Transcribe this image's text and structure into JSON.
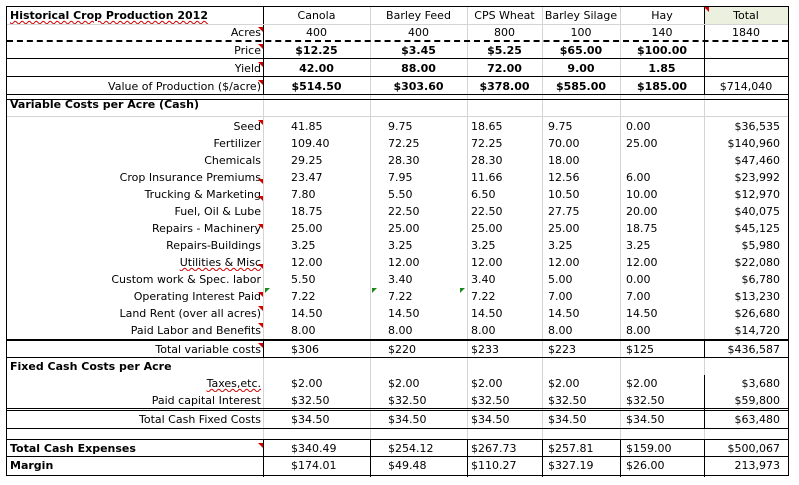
{
  "title": "Historical Crop Production 2012",
  "columns": [
    "Canola",
    "Barley Feed",
    "CPS Wheat",
    "Barley Silage",
    "Hay",
    "Total"
  ],
  "acres": {
    "label": "Acres",
    "values": [
      "400",
      "400",
      "800",
      "100",
      "140",
      "1840"
    ]
  },
  "price": {
    "label": "Price",
    "values": [
      "$12.25",
      "$3.45",
      "$5.25",
      "$65.00",
      "$100.00",
      ""
    ]
  },
  "yield": {
    "label": "Yield",
    "values": [
      "42.00",
      "88.00",
      "72.00",
      "9.00",
      "1.85",
      ""
    ]
  },
  "value": {
    "label": "Value of Production ($/acre)",
    "values": [
      "$514.50",
      "$303.60",
      "$378.00",
      "$585.00",
      "$185.00",
      "$714,040"
    ]
  },
  "variable_header": "Variable Costs per Acre (Cash)",
  "variable_rows": [
    {
      "label": "Seed",
      "values": [
        "41.85",
        "9.75",
        "18.65",
        "9.75",
        "0.00",
        "$36,535"
      ]
    },
    {
      "label": "Fertilizer",
      "values": [
        "109.40",
        "72.25",
        "72.25",
        "70.00",
        "25.00",
        "$140,960"
      ]
    },
    {
      "label": "Chemicals",
      "values": [
        "29.25",
        "28.30",
        "28.30",
        "18.00",
        "",
        "$47,460"
      ]
    },
    {
      "label": "Crop Insurance Premiums",
      "values": [
        "23.47",
        "7.95",
        "11.66",
        "12.56",
        "6.00",
        "$23,992"
      ]
    },
    {
      "label": "Trucking & Marketing",
      "values": [
        "7.80",
        "5.50",
        "6.50",
        "10.50",
        "10.00",
        "$12,970"
      ]
    },
    {
      "label": "Fuel, Oil & Lube",
      "values": [
        "18.75",
        "22.50",
        "22.50",
        "27.75",
        "20.00",
        "$40,075"
      ]
    },
    {
      "label": "Repairs - Machinery",
      "values": [
        "25.00",
        "25.00",
        "25.00",
        "25.00",
        "18.75",
        "$45,125"
      ]
    },
    {
      "label": "Repairs-Buildings",
      "values": [
        "3.25",
        "3.25",
        "3.25",
        "3.25",
        "3.25",
        "$5,980"
      ]
    },
    {
      "label": "Utilities & Misc",
      "values": [
        "12.00",
        "12.00",
        "12.00",
        "12.00",
        "12.00",
        "$22,080"
      ]
    },
    {
      "label": "Custom work & Spec. labor",
      "values": [
        "5.50",
        "3.40",
        "3.40",
        "5.00",
        "0.00",
        "$6,780"
      ]
    },
    {
      "label": "Operating Interest Paid",
      "values": [
        "7.22",
        "7.22",
        "7.22",
        "7.00",
        "7.00",
        "$13,230"
      ]
    },
    {
      "label": "Land Rent (over all acres)",
      "values": [
        "14.50",
        "14.50",
        "14.50",
        "14.50",
        "14.50",
        "$26,680"
      ]
    },
    {
      "label": "Paid Labor and Benefits",
      "values": [
        "8.00",
        "8.00",
        "8.00",
        "8.00",
        "8.00",
        "$14,720"
      ]
    }
  ],
  "total_variable": {
    "label": "Total variable costs",
    "values": [
      "$306",
      "$220",
      "$233",
      "$223",
      "$125",
      "$436,587"
    ]
  },
  "fixed_header": "Fixed Cash Costs per Acre",
  "fixed_rows": [
    {
      "label": "Taxes,etc.",
      "values": [
        "$2.00",
        "$2.00",
        "$2.00",
        "$2.00",
        "$2.00",
        "$3,680"
      ]
    },
    {
      "label": "Paid capital Interest",
      "values": [
        "$32.50",
        "$32.50",
        "$32.50",
        "$32.50",
        "$32.50",
        "$59,800"
      ]
    }
  ],
  "total_fixed": {
    "label": "Total Cash Fixed Costs",
    "values": [
      "$34.50",
      "$34.50",
      "$34.50",
      "$34.50",
      "$34.50",
      "$63,480"
    ]
  },
  "total_cash": {
    "label": "Total Cash Expenses",
    "values": [
      "$340.49",
      "$254.12",
      "$267.73",
      "$257.81",
      "$159.00",
      "$500,067"
    ]
  },
  "margin": {
    "label": "Margin",
    "values": [
      "$174.01",
      "$49.48",
      "$110.27",
      "$327.19",
      "$26.00",
      "213,973"
    ]
  },
  "colors": {
    "total_header_bg": "#ebf1de",
    "comment_marker": "#d00000",
    "error_marker": "#1a8a1a"
  }
}
